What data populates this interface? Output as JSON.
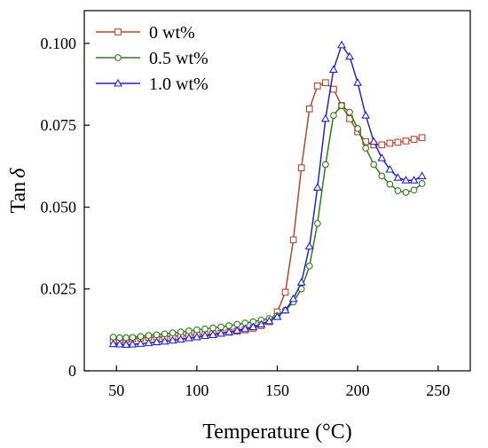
{
  "chart_data": {
    "type": "line",
    "xlabel": "Temperature (°C)",
    "ylabel": "Tan δ",
    "ylabel_parts": {
      "text": "Tan",
      "symbol": "δ"
    },
    "xlim": [
      30,
      270
    ],
    "ylim": [
      0,
      0.11
    ],
    "xticks": [
      50,
      100,
      150,
      200,
      250
    ],
    "xtick_labels": [
      "50",
      "100",
      "150",
      "200",
      "250"
    ],
    "yticks": [
      0,
      0.025,
      0.05,
      0.075,
      0.1
    ],
    "ytick_labels": [
      "0",
      "0.025",
      "0.050",
      "0.075",
      "0.100"
    ],
    "grid": false,
    "legend_position": "top-left",
    "series": [
      {
        "name": "0     wt%",
        "color": "#b5472e",
        "marker": "square",
        "x": [
          48,
          52,
          56,
          60,
          65,
          70,
          75,
          80,
          85,
          90,
          95,
          100,
          105,
          110,
          115,
          120,
          125,
          130,
          135,
          140,
          145,
          150,
          155,
          160,
          165,
          170,
          175,
          180,
          185,
          190,
          195,
          200,
          205,
          210,
          215,
          220,
          225,
          230,
          235,
          240
        ],
        "values": [
          0.0092,
          0.0094,
          0.0096,
          0.0098,
          0.01,
          0.0102,
          0.0103,
          0.0104,
          0.0106,
          0.0107,
          0.0108,
          0.011,
          0.0111,
          0.0113,
          0.0115,
          0.0118,
          0.0121,
          0.0125,
          0.013,
          0.0138,
          0.015,
          0.018,
          0.024,
          0.04,
          0.062,
          0.08,
          0.087,
          0.088,
          0.086,
          0.081,
          0.077,
          0.073,
          0.07,
          0.069,
          0.069,
          0.0695,
          0.0698,
          0.0702,
          0.0707,
          0.0712
        ]
      },
      {
        "name": "0.5 wt%",
        "color": "#2e7d1e",
        "marker": "circle",
        "x": [
          48,
          52,
          56,
          60,
          65,
          70,
          75,
          80,
          85,
          90,
          95,
          100,
          105,
          110,
          115,
          120,
          125,
          130,
          135,
          140,
          145,
          150,
          155,
          160,
          165,
          170,
          175,
          180,
          185,
          190,
          195,
          200,
          205,
          210,
          215,
          220,
          225,
          230,
          235,
          240
        ],
        "values": [
          0.0103,
          0.0101,
          0.0101,
          0.0102,
          0.0105,
          0.0108,
          0.011,
          0.0113,
          0.0116,
          0.0119,
          0.0122,
          0.0125,
          0.0128,
          0.0131,
          0.0134,
          0.0138,
          0.0142,
          0.0146,
          0.015,
          0.0155,
          0.016,
          0.0168,
          0.0185,
          0.021,
          0.025,
          0.032,
          0.045,
          0.063,
          0.078,
          0.081,
          0.079,
          0.074,
          0.068,
          0.063,
          0.0595,
          0.057,
          0.055,
          0.0545,
          0.0552,
          0.0572
        ]
      },
      {
        "name": "1.0 wt%",
        "color": "#2424c8",
        "marker": "triangle",
        "x": [
          48,
          52,
          56,
          60,
          65,
          70,
          75,
          80,
          85,
          90,
          95,
          100,
          105,
          110,
          115,
          120,
          125,
          130,
          135,
          140,
          145,
          150,
          155,
          160,
          165,
          170,
          175,
          180,
          185,
          190,
          195,
          200,
          205,
          210,
          215,
          220,
          225,
          230,
          235,
          240
        ],
        "values": [
          0.0082,
          0.0081,
          0.008,
          0.0081,
          0.0083,
          0.0085,
          0.0088,
          0.009,
          0.0093,
          0.0096,
          0.01,
          0.0103,
          0.0107,
          0.011,
          0.0114,
          0.0118,
          0.0123,
          0.0128,
          0.0134,
          0.0142,
          0.0152,
          0.0165,
          0.0185,
          0.022,
          0.027,
          0.038,
          0.056,
          0.077,
          0.092,
          0.0995,
          0.096,
          0.088,
          0.078,
          0.07,
          0.065,
          0.0615,
          0.059,
          0.0582,
          0.0582,
          0.0595
        ]
      }
    ]
  }
}
